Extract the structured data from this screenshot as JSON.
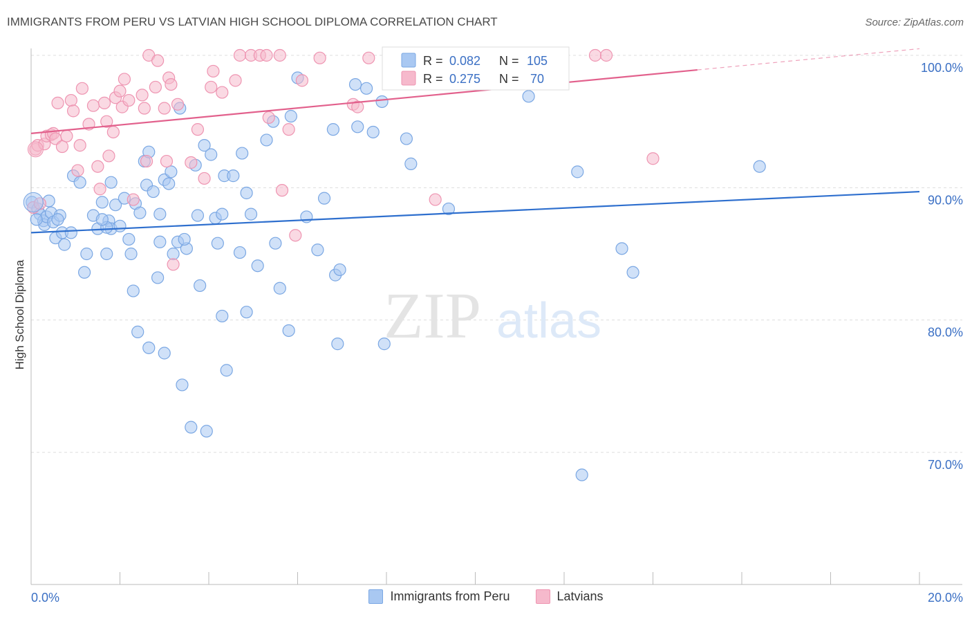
{
  "title": "IMMIGRANTS FROM PERU VS LATVIAN HIGH SCHOOL DIPLOMA CORRELATION CHART",
  "source": "Source: ZipAtlas.com",
  "watermark": {
    "bold": "ZIP",
    "light": "atlas"
  },
  "colors": {
    "blue_fill": "#a9c8f2",
    "blue_stroke": "#7aa7e3",
    "blue_line": "#2e6fce",
    "pink_fill": "#f6b9cc",
    "pink_stroke": "#ee94b1",
    "pink_line": "#e2608c",
    "axis_text": "#3a6fc4",
    "grid": "#dddddd"
  },
  "stats_legend": [
    {
      "r_label": "R = ",
      "r_value": "0.082",
      "n_label": "N = ",
      "n_value": "105"
    },
    {
      "r_label": "R = ",
      "r_value": "0.275",
      "n_label": "N = ",
      "n_value": " 70"
    }
  ],
  "bottom_legend": [
    "Immigrants from Peru",
    "Latvians"
  ],
  "chart_data": {
    "type": "scatter",
    "title": "IMMIGRANTS FROM PERU VS LATVIAN HIGH SCHOOL DIPLOMA CORRELATION CHART",
    "xlabel": "",
    "ylabel": "High School Diploma",
    "xlim": [
      0,
      20
    ],
    "ylim": [
      60,
      101
    ],
    "x_tick_labels": [
      "0.0%",
      "20.0%"
    ],
    "y_ticks": [
      100,
      90,
      80,
      70
    ],
    "y_tick_labels": [
      "100.0%",
      "90.0%",
      "80.0%",
      "70.0%"
    ],
    "grid": true,
    "series": [
      {
        "name": "Immigrants from Peru",
        "color": "#a9c8f2",
        "r": 0.082,
        "n": 105,
        "trend": {
          "x": [
            0,
            20
          ],
          "y": [
            86.6,
            89.7
          ]
        },
        "points": [
          [
            0.02,
            88.9
          ],
          [
            0.15,
            88.4
          ],
          [
            0.2,
            88.0
          ],
          [
            0.28,
            87.5
          ],
          [
            0.3,
            87.2
          ],
          [
            0.35,
            87.8
          ],
          [
            0.4,
            89.0
          ],
          [
            0.45,
            88.1
          ],
          [
            0.5,
            87.4
          ],
          [
            0.55,
            86.2
          ],
          [
            0.65,
            87.9
          ],
          [
            0.7,
            86.6
          ],
          [
            0.75,
            85.7
          ],
          [
            0.9,
            86.6
          ],
          [
            0.95,
            90.9
          ],
          [
            1.1,
            90.4
          ],
          [
            1.25,
            85.0
          ],
          [
            1.2,
            83.6
          ],
          [
            1.4,
            87.9
          ],
          [
            1.5,
            86.9
          ],
          [
            1.6,
            88.9
          ],
          [
            1.75,
            87.5
          ],
          [
            1.8,
            86.9
          ],
          [
            1.7,
            85.0
          ],
          [
            1.7,
            87.0
          ],
          [
            1.8,
            90.4
          ],
          [
            1.9,
            88.7
          ],
          [
            2.0,
            87.1
          ],
          [
            2.1,
            89.2
          ],
          [
            2.2,
            86.1
          ],
          [
            2.25,
            85.0
          ],
          [
            2.35,
            88.8
          ],
          [
            2.45,
            88.1
          ],
          [
            2.3,
            82.2
          ],
          [
            2.4,
            79.1
          ],
          [
            2.55,
            92.0
          ],
          [
            2.6,
            90.2
          ],
          [
            2.65,
            92.7
          ],
          [
            2.65,
            77.9
          ],
          [
            2.75,
            89.7
          ],
          [
            2.85,
            83.2
          ],
          [
            2.9,
            85.9
          ],
          [
            3.0,
            90.6
          ],
          [
            3.0,
            77.5
          ],
          [
            3.1,
            90.3
          ],
          [
            3.15,
            91.2
          ],
          [
            3.2,
            85.0
          ],
          [
            3.3,
            85.9
          ],
          [
            3.35,
            96.0
          ],
          [
            3.4,
            75.1
          ],
          [
            3.5,
            85.4
          ],
          [
            3.45,
            86.1
          ],
          [
            3.6,
            71.9
          ],
          [
            3.7,
            91.7
          ],
          [
            3.75,
            87.9
          ],
          [
            3.8,
            82.6
          ],
          [
            3.9,
            93.2
          ],
          [
            3.95,
            71.6
          ],
          [
            4.05,
            92.5
          ],
          [
            4.15,
            87.7
          ],
          [
            4.2,
            85.8
          ],
          [
            4.3,
            80.3
          ],
          [
            4.35,
            90.9
          ],
          [
            4.4,
            76.2
          ],
          [
            4.55,
            90.9
          ],
          [
            4.7,
            85.1
          ],
          [
            4.75,
            92.6
          ],
          [
            4.85,
            89.6
          ],
          [
            4.85,
            80.6
          ],
          [
            4.95,
            88.0
          ],
          [
            5.1,
            84.1
          ],
          [
            5.3,
            93.6
          ],
          [
            5.45,
            95.0
          ],
          [
            5.5,
            85.8
          ],
          [
            5.6,
            82.4
          ],
          [
            5.8,
            79.2
          ],
          [
            5.85,
            95.4
          ],
          [
            6.0,
            98.3
          ],
          [
            6.2,
            87.8
          ],
          [
            6.45,
            85.3
          ],
          [
            6.6,
            89.2
          ],
          [
            6.8,
            94.4
          ],
          [
            6.85,
            83.4
          ],
          [
            6.9,
            78.2
          ],
          [
            6.95,
            83.8
          ],
          [
            7.3,
            97.8
          ],
          [
            7.35,
            94.6
          ],
          [
            7.55,
            97.5
          ],
          [
            7.7,
            94.2
          ],
          [
            7.9,
            96.5
          ],
          [
            7.95,
            78.2
          ],
          [
            8.45,
            93.7
          ],
          [
            8.55,
            91.8
          ],
          [
            9.4,
            88.4
          ],
          [
            11.2,
            96.9
          ],
          [
            12.3,
            91.2
          ],
          [
            12.4,
            68.3
          ],
          [
            13.3,
            85.4
          ],
          [
            13.55,
            83.6
          ],
          [
            16.4,
            91.6
          ],
          [
            0.12,
            87.6
          ],
          [
            0.6,
            87.6
          ],
          [
            1.6,
            87.6
          ],
          [
            4.3,
            88.0
          ],
          [
            2.9,
            88.0
          ]
        ]
      },
      {
        "name": "Latvians",
        "color": "#f6b9cc",
        "r": 0.275,
        "n": 70,
        "trend": {
          "x": [
            0,
            15
          ],
          "y": [
            94.1,
            98.9
          ]
        },
        "trend_dashed": {
          "x": [
            15,
            20
          ],
          "y": [
            98.9,
            100.5
          ]
        },
        "points": [
          [
            0.05,
            88.5
          ],
          [
            0.1,
            92.9
          ],
          [
            0.15,
            93.2
          ],
          [
            0.2,
            88.8
          ],
          [
            0.3,
            93.3
          ],
          [
            0.35,
            93.9
          ],
          [
            0.45,
            94.0
          ],
          [
            0.5,
            94.1
          ],
          [
            0.55,
            93.7
          ],
          [
            0.6,
            96.4
          ],
          [
            0.7,
            93.1
          ],
          [
            0.8,
            93.9
          ],
          [
            0.9,
            96.6
          ],
          [
            0.95,
            95.8
          ],
          [
            1.05,
            91.3
          ],
          [
            1.1,
            93.2
          ],
          [
            1.15,
            97.5
          ],
          [
            1.3,
            94.8
          ],
          [
            1.4,
            96.2
          ],
          [
            1.5,
            91.6
          ],
          [
            1.55,
            89.9
          ],
          [
            1.65,
            96.4
          ],
          [
            1.7,
            95.0
          ],
          [
            1.75,
            92.4
          ],
          [
            1.85,
            94.2
          ],
          [
            1.9,
            96.8
          ],
          [
            2.0,
            97.3
          ],
          [
            2.05,
            96.1
          ],
          [
            2.1,
            98.2
          ],
          [
            2.2,
            96.6
          ],
          [
            2.3,
            89.1
          ],
          [
            2.5,
            97.0
          ],
          [
            2.55,
            96.0
          ],
          [
            2.6,
            92.0
          ],
          [
            2.65,
            100.0
          ],
          [
            2.8,
            97.6
          ],
          [
            2.85,
            99.6
          ],
          [
            3.0,
            96.0
          ],
          [
            3.05,
            92.0
          ],
          [
            3.1,
            98.3
          ],
          [
            3.15,
            97.8
          ],
          [
            3.2,
            84.2
          ],
          [
            3.3,
            96.3
          ],
          [
            3.6,
            91.9
          ],
          [
            3.75,
            94.4
          ],
          [
            3.9,
            90.7
          ],
          [
            4.05,
            97.6
          ],
          [
            4.1,
            98.8
          ],
          [
            4.3,
            97.2
          ],
          [
            4.6,
            98.1
          ],
          [
            4.7,
            100.0
          ],
          [
            4.95,
            100.0
          ],
          [
            5.15,
            100.0
          ],
          [
            5.3,
            100.0
          ],
          [
            5.35,
            95.3
          ],
          [
            5.6,
            100.0
          ],
          [
            5.65,
            89.8
          ],
          [
            5.8,
            94.4
          ],
          [
            5.95,
            86.4
          ],
          [
            6.1,
            98.1
          ],
          [
            6.5,
            99.8
          ],
          [
            7.25,
            96.3
          ],
          [
            7.35,
            96.1
          ],
          [
            10.4,
            100.0
          ],
          [
            12.7,
            100.0
          ],
          [
            12.95,
            100.0
          ],
          [
            14.0,
            92.2
          ],
          [
            9.1,
            89.1
          ],
          [
            7.6,
            99.8
          ],
          [
            8.1,
            99.6
          ]
        ]
      }
    ]
  }
}
